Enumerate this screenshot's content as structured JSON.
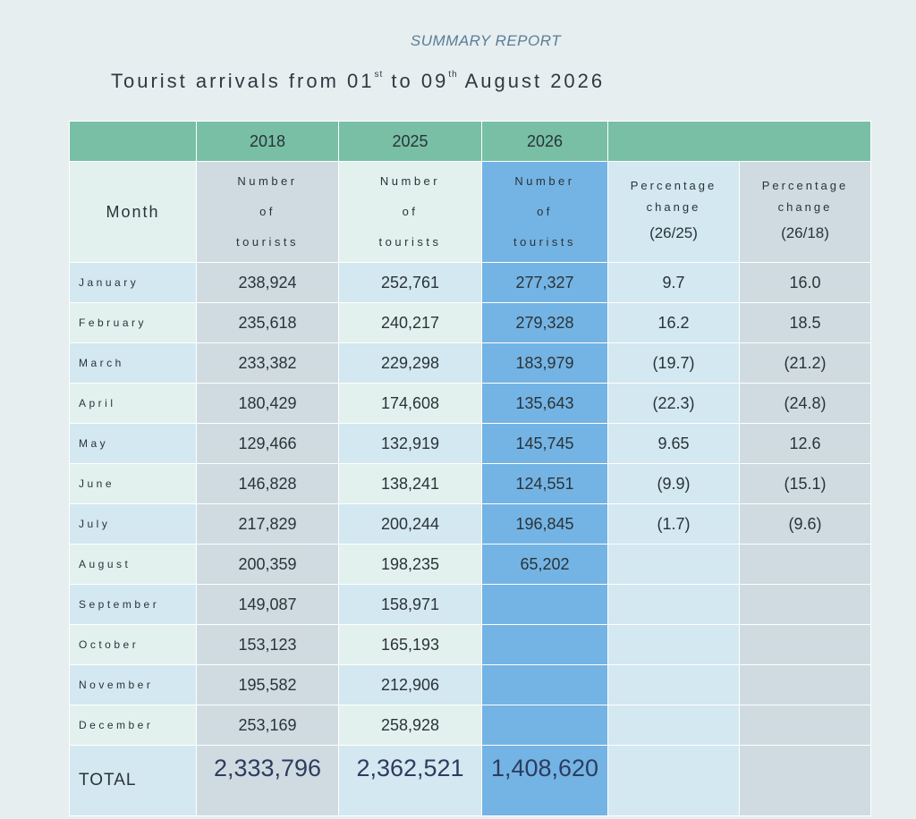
{
  "report": {
    "subtitle": "SUMMARY REPORT",
    "title_prefix": "Tourist arrivals from 01",
    "title_sup1": "st",
    "title_mid": " to 09",
    "title_sup2": "th",
    "title_suffix": " August 2026"
  },
  "table": {
    "year_headers": [
      "2018",
      "2025",
      "2026",
      ""
    ],
    "month_header": "Month",
    "count_header": {
      "line1": "Number",
      "line2": "of",
      "line3": "tourists"
    },
    "pct_headers": [
      {
        "line1": "Percentage",
        "line2": "change",
        "line3": "(26/25)"
      },
      {
        "line1": "Percentage",
        "line2": "change",
        "line3": "(26/18)"
      }
    ],
    "rows": [
      {
        "month": "January",
        "y2018": "238,924",
        "y2025": "252,761",
        "y2026": "277,327",
        "p2625": "9.7",
        "p2618": "16.0"
      },
      {
        "month": "February",
        "y2018": "235,618",
        "y2025": "240,217",
        "y2026": "279,328",
        "p2625": "16.2",
        "p2618": "18.5"
      },
      {
        "month": "March",
        "y2018": "233,382",
        "y2025": "229,298",
        "y2026": "183,979",
        "p2625": "(19.7)",
        "p2618": "(21.2)"
      },
      {
        "month": "April",
        "y2018": "180,429",
        "y2025": "174,608",
        "y2026": "135,643",
        "p2625": "(22.3)",
        "p2618": "(24.8)"
      },
      {
        "month": "May",
        "y2018": "129,466",
        "y2025": "132,919",
        "y2026": "145,745",
        "p2625": "9.65",
        "p2618": "12.6"
      },
      {
        "month": "June",
        "y2018": "146,828",
        "y2025": "138,241",
        "y2026": "124,551",
        "p2625": "(9.9)",
        "p2618": "(15.1)"
      },
      {
        "month": "July",
        "y2018": "217,829",
        "y2025": "200,244",
        "y2026": "196,845",
        "p2625": "(1.7)",
        "p2618": "(9.6)"
      },
      {
        "month": "August",
        "y2018": "200,359",
        "y2025": "198,235",
        "y2026": "65,202",
        "p2625": "",
        "p2618": ""
      },
      {
        "month": "September",
        "y2018": "149,087",
        "y2025": "158,971",
        "y2026": "",
        "p2625": "",
        "p2618": ""
      },
      {
        "month": "October",
        "y2018": "153,123",
        "y2025": "165,193",
        "y2026": "",
        "p2625": "",
        "p2618": ""
      },
      {
        "month": "November",
        "y2018": "195,582",
        "y2025": "212,906",
        "y2026": "",
        "p2625": "",
        "p2618": ""
      },
      {
        "month": "December",
        "y2018": "253,169",
        "y2025": "258,928",
        "y2026": "",
        "p2625": "",
        "p2618": ""
      }
    ],
    "total": {
      "label": "TOTAL",
      "y2018": "2,333,796",
      "y2025": "2,362,521",
      "y2026": "1,408,620"
    }
  },
  "colors": {
    "header_green": "#78bfa6",
    "highlight_2026": "#74b4e4",
    "page_bg": "#e6eef0",
    "total_text": "#2d3c5e"
  }
}
